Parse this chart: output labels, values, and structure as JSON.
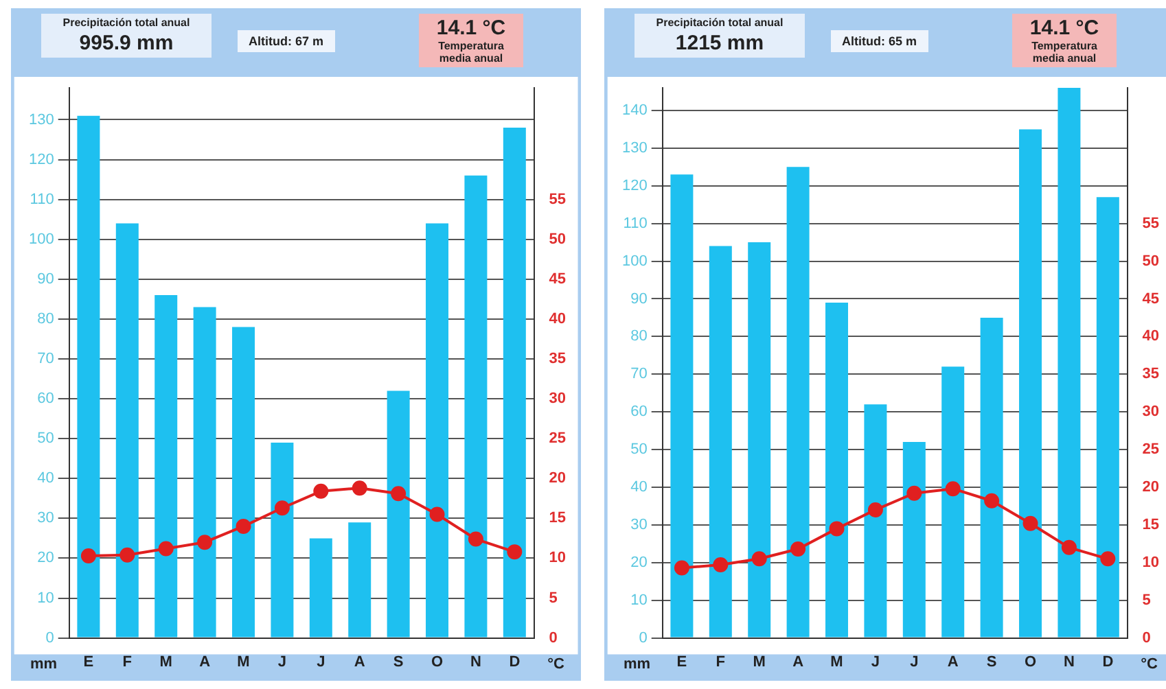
{
  "chart_data": [
    {
      "type": "bar",
      "categories": [
        "E",
        "F",
        "M",
        "A",
        "M",
        "J",
        "J",
        "A",
        "S",
        "O",
        "N",
        "D"
      ],
      "ylabel": "mm",
      "y2label": "°C",
      "annotations": [
        "Precipitación total anual",
        "995.9 mm",
        "Altitud: 67 m",
        "14.1 °C",
        "Temperatura media anual"
      ],
      "series": [
        {
          "color": "#1ec0f0",
          "values": [
            131,
            104,
            86,
            83,
            78,
            49,
            25,
            29,
            62,
            104,
            116,
            128
          ]
        },
        {
          "type": "line",
          "axis": "y2",
          "color": "#e02020",
          "values": [
            10.3,
            10.4,
            11.2,
            12,
            14,
            16.3,
            18.4,
            18.8,
            18.1,
            15.5,
            12.4,
            10.8
          ]
        }
      ],
      "ylim": [
        0,
        138
      ],
      "yticks": [
        0,
        10,
        20,
        30,
        40,
        50,
        60,
        70,
        80,
        90,
        100,
        110,
        120,
        130
      ],
      "y2lim": [
        0,
        69
      ],
      "y2ticks": [
        0,
        5,
        10,
        15,
        20,
        25,
        30,
        35,
        40,
        45,
        50,
        55
      ],
      "grid": "y",
      "legend": false,
      "marker": "circle",
      "line_style": "solid"
    },
    {
      "type": "bar",
      "categories": [
        "E",
        "F",
        "M",
        "A",
        "M",
        "J",
        "J",
        "A",
        "S",
        "O",
        "N",
        "D"
      ],
      "ylabel": "mm",
      "y2label": "°C",
      "annotations": [
        "Precipitación total anual",
        "1215 mm",
        "Altitud: 65 m",
        "14.1 °C",
        "Temperatura media anual"
      ],
      "series": [
        {
          "color": "#1ec0f0",
          "values": [
            123,
            104,
            105,
            125,
            89,
            62,
            52,
            72,
            85,
            135,
            146,
            117
          ]
        },
        {
          "type": "line",
          "axis": "y2",
          "color": "#e02020",
          "values": [
            9.3,
            9.7,
            10.5,
            11.8,
            14.5,
            17,
            19.2,
            19.8,
            18.2,
            15.2,
            12,
            10.5
          ]
        }
      ],
      "ylim": [
        0,
        146
      ],
      "yticks": [
        0,
        10,
        20,
        30,
        40,
        50,
        60,
        70,
        80,
        90,
        100,
        110,
        120,
        130,
        140
      ],
      "y2lim": [
        0,
        73
      ],
      "y2ticks": [
        0,
        5,
        10,
        15,
        20,
        25,
        30,
        35,
        40,
        45,
        50,
        55
      ],
      "grid": "y",
      "legend": false,
      "marker": "circle",
      "line_style": "solid"
    }
  ]
}
